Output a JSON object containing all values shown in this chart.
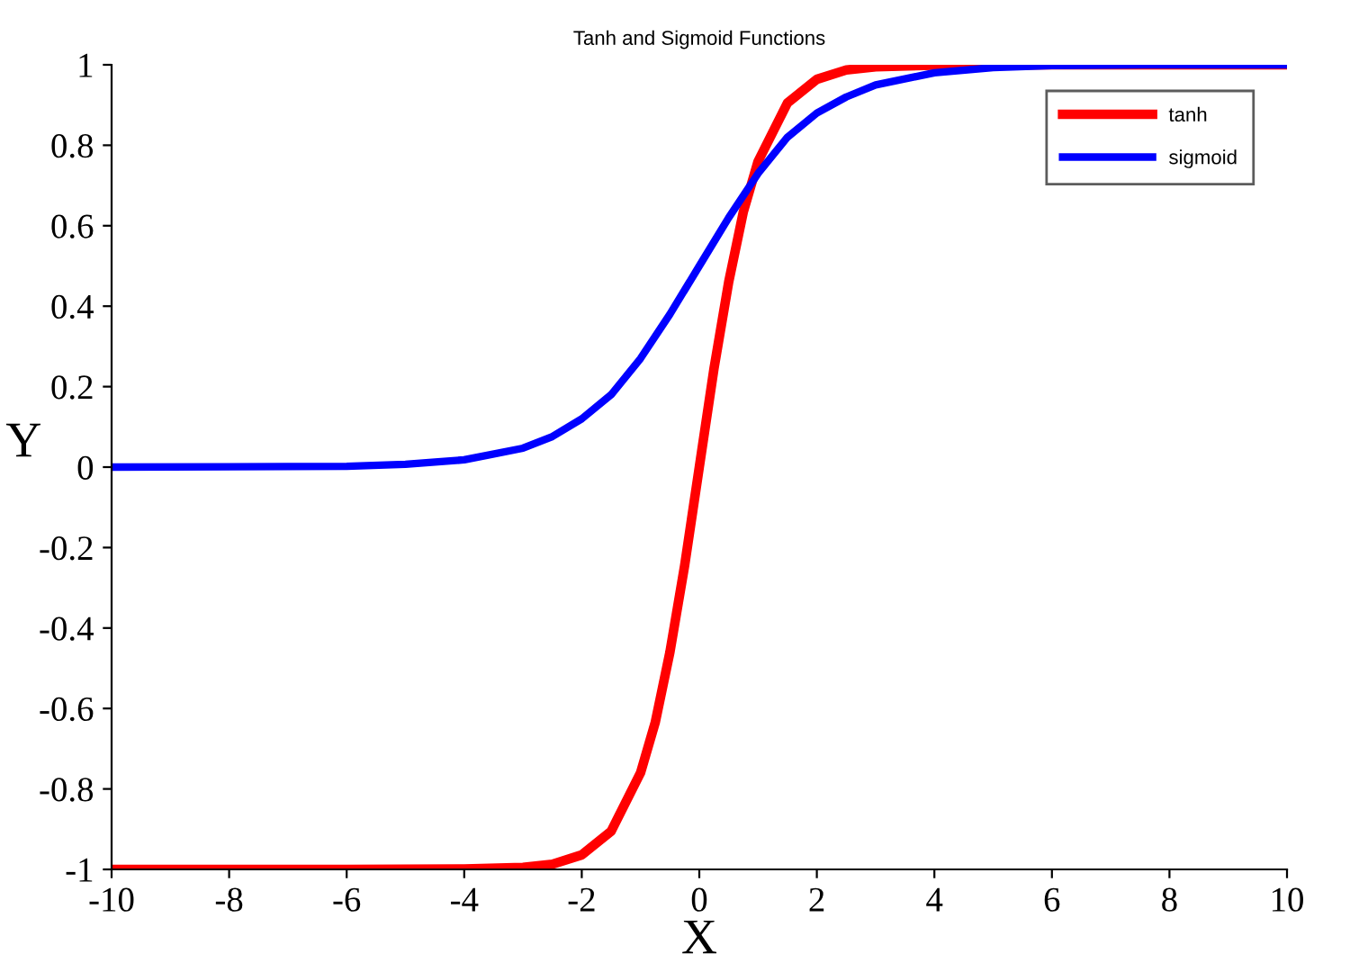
{
  "chart_data": {
    "type": "line",
    "title": "Tanh and Sigmoid Functions",
    "xlabel": "X",
    "ylabel": "Y",
    "xlim": [
      -10,
      10
    ],
    "ylim": [
      -1,
      1
    ],
    "xticks": [
      -10,
      -8,
      -6,
      -4,
      -2,
      0,
      2,
      4,
      6,
      8,
      10
    ],
    "yticks": [
      -1,
      -0.8,
      -0.6,
      -0.4,
      -0.2,
      0,
      0.2,
      0.4,
      0.6,
      0.8,
      1
    ],
    "grid": false,
    "legend": "top right",
    "marker": "none",
    "line_style": "solid",
    "series": [
      {
        "name": "tanh",
        "color": "#ff0000",
        "x": [
          -10,
          -6,
          -4,
          -3,
          -2.5,
          -2,
          -1.5,
          -1,
          -0.75,
          -0.5,
          -0.25,
          0,
          0.25,
          0.5,
          0.75,
          1,
          1.5,
          2,
          2.5,
          3,
          4,
          6,
          10
        ],
        "values": [
          -1,
          -1,
          -0.999,
          -0.995,
          -0.987,
          -0.964,
          -0.905,
          -0.76,
          -0.635,
          -0.46,
          -0.245,
          0,
          0.245,
          0.46,
          0.635,
          0.76,
          0.905,
          0.964,
          0.987,
          0.995,
          0.999,
          1,
          1
        ]
      },
      {
        "name": "sigmoid",
        "color": "#0000ff",
        "x": [
          -10,
          -6,
          -5,
          -4,
          -3,
          -2.5,
          -2,
          -1.5,
          -1,
          -0.5,
          0,
          0.5,
          1,
          1.5,
          2,
          2.5,
          3,
          4,
          5,
          6,
          8,
          10
        ],
        "values": [
          0,
          0.002,
          0.007,
          0.018,
          0.047,
          0.076,
          0.12,
          0.18,
          0.27,
          0.38,
          0.5,
          0.62,
          0.73,
          0.82,
          0.88,
          0.92,
          0.95,
          0.98,
          0.993,
          0.998,
          1,
          1
        ]
      }
    ]
  }
}
